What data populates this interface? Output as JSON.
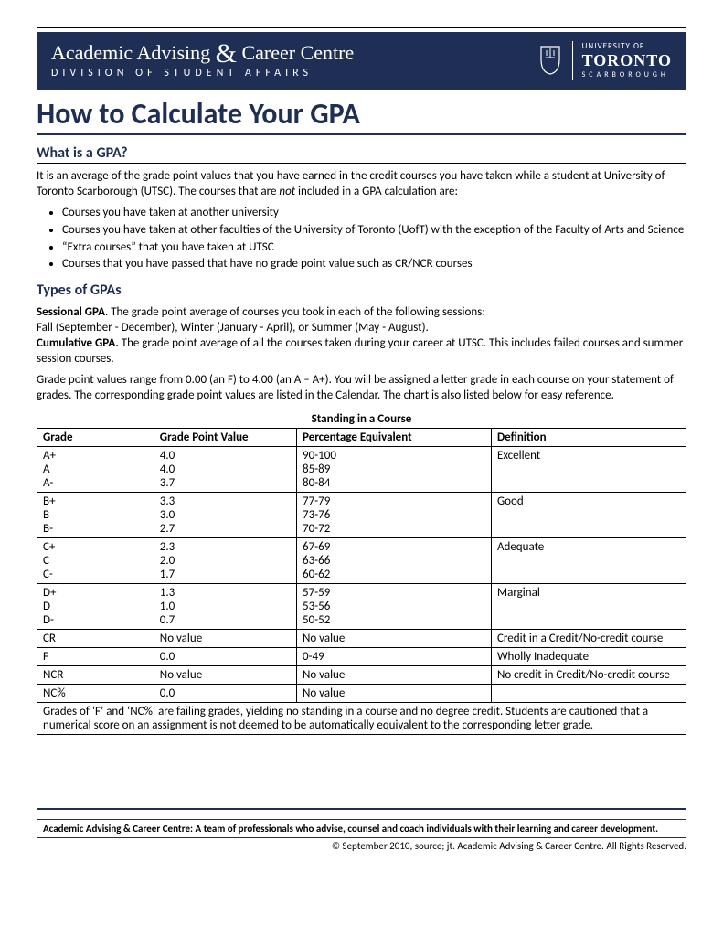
{
  "colors": {
    "primary": "#1e2e55",
    "text": "#000000",
    "bg": "#ffffff"
  },
  "header": {
    "title_left": "Academic Advising",
    "title_right": "Career Centre",
    "subtitle": "DIVISION OF STUDENT AFFAIRS",
    "univ_of": "UNIVERSITY OF",
    "univ_name": "TORONTO",
    "univ_campus": "SCARBOROUGH"
  },
  "page_title": "How to Calculate Your GPA",
  "section1": {
    "heading": "What is a GPA?",
    "intro_a": "It is an average of the grade point values that you have earned in the credit courses you have taken while a student at University of Toronto Scarborough (UTSC).  The courses that are ",
    "intro_not": "not",
    "intro_b": " included in a GPA calculation are:",
    "bullets": [
      "Courses you have taken at another university",
      "Courses you have taken at other faculties of the University of Toronto (UofT) with the exception of the Faculty of Arts and Science",
      "“Extra courses” that you have taken at UTSC",
      "Courses that you have passed that have no grade point value such as CR/NCR courses"
    ]
  },
  "section2": {
    "heading": "Types of GPAs",
    "sess_label": "Sessional GPA",
    "sess_text": ". The grade point average of courses you took in each of the following sessions:",
    "sess_line2": "Fall (September - December), Winter (January - April), or Summer (May - August).",
    "cum_label": "Cumulative GPA.",
    "cum_text": " The grade point average of all the courses taken during your career at UTSC.  This includes failed courses and summer session courses.",
    "range_text": "Grade point values range from 0.00 (an F) to 4.00 (an A – A+).  You will be assigned a letter grade in each course on your statement of grades.  The corresponding grade point values are listed in the Calendar.  The chart is also listed below for easy reference."
  },
  "table": {
    "caption": "Standing in a Course",
    "columns": [
      "Grade",
      "Grade Point Value",
      "Percentage Equivalent",
      "Definition"
    ],
    "groups": [
      {
        "grades": [
          "A+",
          "A",
          "A-"
        ],
        "gpv": [
          "4.0",
          "4.0",
          "3.7"
        ],
        "pct": [
          "90-100",
          "85-89",
          "80-84"
        ],
        "def": "Excellent"
      },
      {
        "grades": [
          "B+",
          "B",
          "B-"
        ],
        "gpv": [
          "3.3",
          "3.0",
          "2.7"
        ],
        "pct": [
          "77-79",
          "73-76",
          "70-72"
        ],
        "def": "Good"
      },
      {
        "grades": [
          "C+",
          "C",
          "C-"
        ],
        "gpv": [
          "2.3",
          "2.0",
          "1.7"
        ],
        "pct": [
          "67-69",
          "63-66",
          "60-62"
        ],
        "def": "Adequate"
      },
      {
        "grades": [
          "D+",
          "D",
          "D-"
        ],
        "gpv": [
          "1.3",
          "1.0",
          "0.7"
        ],
        "pct": [
          "57-59",
          "53-56",
          "50-52"
        ],
        "def": "Marginal"
      }
    ],
    "singles": [
      {
        "grade": "CR",
        "gpv": "No value",
        "pct": "No value",
        "def": "Credit in a Credit/No-credit course"
      },
      {
        "grade": "F",
        "gpv": "0.0",
        "pct": "0-49",
        "def": "Wholly Inadequate"
      },
      {
        "grade": "NCR",
        "gpv": "No value",
        "pct": "No value",
        "def": "No credit in Credit/No-credit course"
      },
      {
        "grade": "NC%",
        "gpv": "0.0",
        "pct": "No value",
        "def": ""
      }
    ],
    "footnote": "Grades of ‘F’ and ‘NC%’ are failing grades, yielding no standing in a course and no degree credit. Students are cautioned that a numerical score on an assignment is not deemed to be automatically equivalent to the corresponding letter grade."
  },
  "footer": {
    "box": "Academic Advising & Career Centre: A team of professionals who advise, counsel and coach individuals with their learning and career development.",
    "copyright": "© September 2010, source; jt. Academic Advising & Career Centre. All Rights Reserved."
  }
}
